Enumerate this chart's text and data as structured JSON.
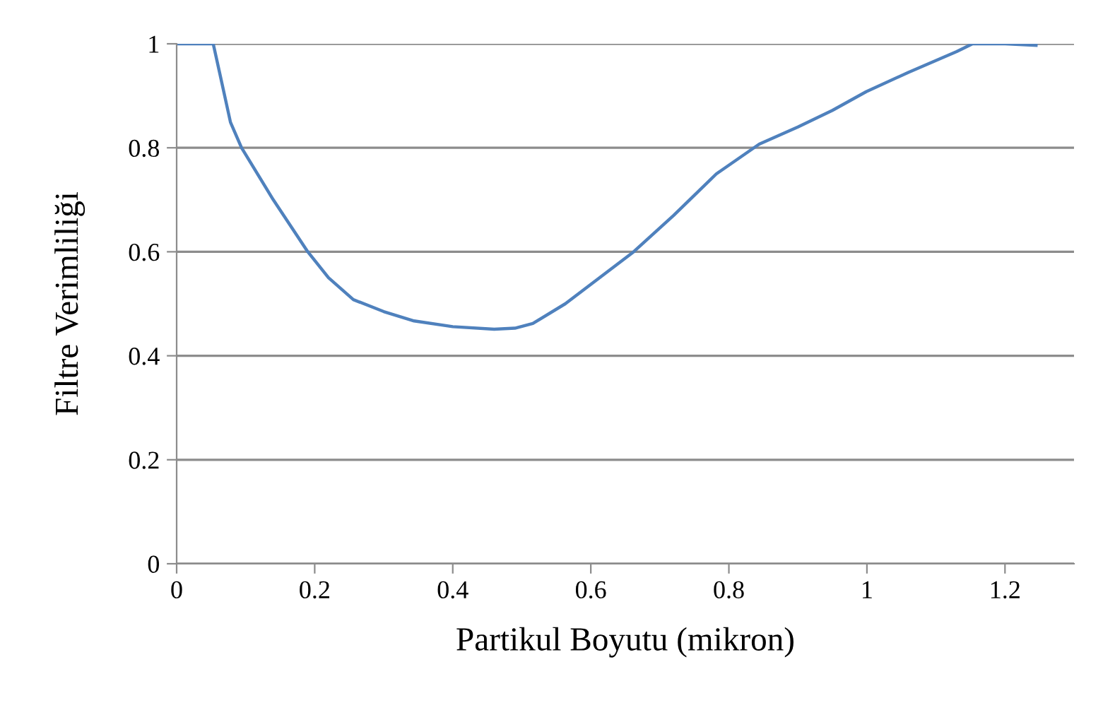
{
  "chart_data": {
    "type": "line",
    "xlabel": "Partikul Boyutu (mikron)",
    "ylabel": "Filtre Verimliliği",
    "x": [
      0,
      0.053,
      0.063,
      0.078,
      0.094,
      0.14,
      0.19,
      0.22,
      0.256,
      0.3,
      0.344,
      0.4,
      0.46,
      0.49,
      0.516,
      0.563,
      0.662,
      0.72,
      0.782,
      0.844,
      0.9,
      0.95,
      0.999,
      1.06,
      1.13,
      1.153,
      1.2,
      1.245
    ],
    "series": [
      {
        "color": "#4f81bd",
        "values": [
          1,
          1,
          0.94,
          0.849,
          0.8,
          0.7,
          0.6,
          0.55,
          0.508,
          0.485,
          0.467,
          0.456,
          0.451,
          0.453,
          0.462,
          0.5,
          0.6,
          0.67,
          0.75,
          0.807,
          0.84,
          0.872,
          0.908,
          0.945,
          0.985,
          1.0,
          1.0,
          0.997
        ]
      }
    ],
    "xlim": [
      0,
      1.3
    ],
    "xticks": [
      0,
      0.2,
      0.4,
      0.6,
      0.8,
      1,
      1.2
    ],
    "ylim": [
      0,
      1
    ],
    "yticks": [
      0,
      0.2,
      0.4,
      0.6,
      0.8,
      1
    ],
    "grid": "y",
    "legend": false,
    "marker": "none",
    "line_style": "solid"
  }
}
